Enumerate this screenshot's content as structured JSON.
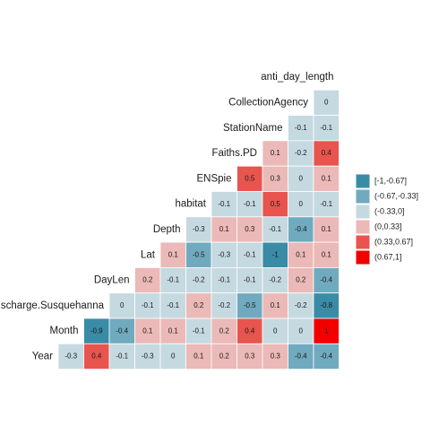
{
  "chart_data": {
    "type": "heatmap",
    "rows": [
      {
        "label": "anti_day_length",
        "values": [
          null,
          null,
          null,
          null,
          null,
          null,
          null,
          null,
          null,
          null,
          null
        ]
      },
      {
        "label": "CollectionAgency",
        "values": [
          null,
          null,
          null,
          null,
          null,
          null,
          null,
          null,
          null,
          null,
          0
        ]
      },
      {
        "label": "StationName",
        "values": [
          null,
          null,
          null,
          null,
          null,
          null,
          null,
          null,
          null,
          -0.1,
          -0.1
        ]
      },
      {
        "label": "Faiths.PD",
        "values": [
          null,
          null,
          null,
          null,
          null,
          null,
          null,
          null,
          0.1,
          -0.2,
          0.4
        ]
      },
      {
        "label": "ENSpie",
        "values": [
          null,
          null,
          null,
          null,
          null,
          null,
          null,
          0.5,
          0.3,
          0,
          0.1
        ]
      },
      {
        "label": "habitat",
        "values": [
          null,
          null,
          null,
          null,
          null,
          null,
          -0.1,
          -0.1,
          0.5,
          0,
          -0.1
        ]
      },
      {
        "label": "Depth",
        "values": [
          null,
          null,
          null,
          null,
          null,
          -0.3,
          0.1,
          0.3,
          -0.1,
          -0.4,
          0.1
        ]
      },
      {
        "label": "Lat",
        "values": [
          null,
          null,
          null,
          null,
          0.1,
          -0.5,
          -0.3,
          -0.1,
          -1,
          0.1,
          0.1
        ]
      },
      {
        "label": "DayLen",
        "values": [
          null,
          null,
          null,
          0.2,
          -0.1,
          -0.2,
          -0.1,
          -0.1,
          -0.2,
          0.2,
          -0.4
        ]
      },
      {
        "label": "scharge.Susquehanna",
        "values": [
          null,
          null,
          0,
          -0.1,
          -0.1,
          0.2,
          -0.2,
          -0.5,
          0.1,
          -0.2,
          -0.8
        ]
      },
      {
        "label": "Month",
        "values": [
          null,
          -0.9,
          -0.4,
          0.1,
          0.1,
          -0.1,
          0.2,
          0.4,
          0,
          0,
          1
        ]
      },
      {
        "label": "Year",
        "values": [
          -0.3,
          0.4,
          -0.1,
          -0.3,
          0,
          0.1,
          0.2,
          0.3,
          0.3,
          -0.4,
          -0.4
        ]
      }
    ],
    "breaks": [
      -1,
      -0.67,
      -0.33,
      0,
      0.33,
      0.67,
      1
    ],
    "colors": [
      "#3a8ba6",
      "#70aabf",
      "#c5d9e0",
      "#ebb9b7",
      "#e8544e",
      "#f20000"
    ],
    "legend": [
      "[-1,-0.67]",
      "(-0.67,-0.33]",
      "(-0.33,0]",
      "(0,0.33]",
      "(0.33,0.67]",
      "(0.67,1]"
    ]
  }
}
